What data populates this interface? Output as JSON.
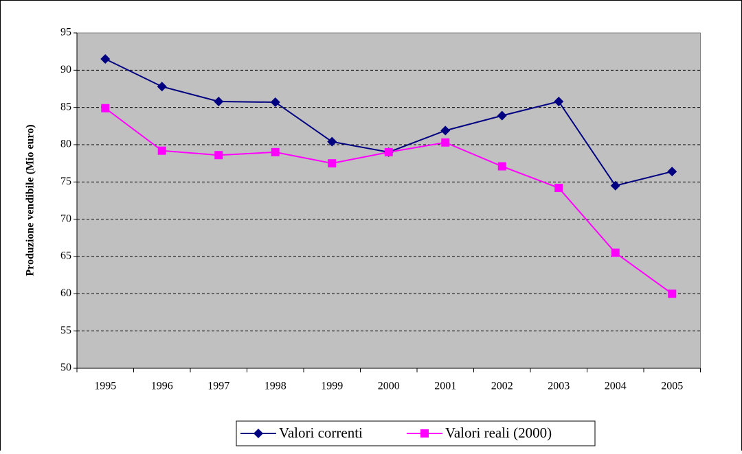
{
  "chart_data": {
    "type": "line",
    "y_label": "Produzione vendibile (Mio euro)",
    "categories": [
      "1995",
      "1996",
      "1997",
      "1998",
      "1999",
      "2000",
      "2001",
      "2002",
      "2003",
      "2004",
      "2005"
    ],
    "series": [
      {
        "name": "Valori correnti",
        "color": "#000080",
        "marker": "diamond",
        "values": [
          91.5,
          87.8,
          85.8,
          85.7,
          80.4,
          79.0,
          81.9,
          83.9,
          85.8,
          74.5,
          76.4
        ]
      },
      {
        "name": "Valori reali (2000)",
        "color": "#ff00ff",
        "marker": "square",
        "values": [
          84.9,
          79.2,
          78.6,
          79.0,
          77.5,
          79.0,
          80.3,
          77.1,
          74.2,
          65.5,
          60.0
        ]
      }
    ],
    "ylim": [
      50,
      95
    ],
    "yticks": [
      50,
      55,
      60,
      65,
      70,
      75,
      80,
      85,
      90,
      95
    ],
    "grid": true,
    "legend": "bottom"
  }
}
